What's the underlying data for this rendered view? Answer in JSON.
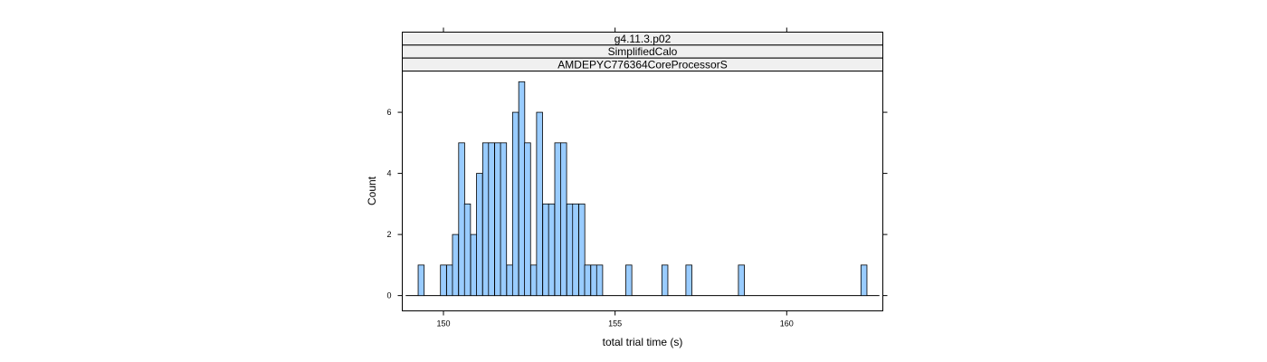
{
  "chart_data": {
    "type": "bar",
    "subtype": "histogram",
    "strips": [
      "g4.11.3.p02",
      "SimplifiedCalo",
      "AMDEPYC776364CoreProcessorS"
    ],
    "xlabel": "total trial time (s)",
    "ylabel": "Count",
    "xlim": [
      148.8,
      162.8
    ],
    "ylim": [
      -0.5,
      7.35
    ],
    "x_ticks": [
      150,
      155,
      160
    ],
    "y_ticks": [
      0,
      2,
      4,
      6
    ],
    "bin_width": 0.175,
    "bins": [
      {
        "x": 149.35,
        "count": 1
      },
      {
        "x": 150.0,
        "count": 1
      },
      {
        "x": 150.18,
        "count": 1
      },
      {
        "x": 150.35,
        "count": 2
      },
      {
        "x": 150.53,
        "count": 5
      },
      {
        "x": 150.7,
        "count": 3
      },
      {
        "x": 150.88,
        "count": 2
      },
      {
        "x": 151.05,
        "count": 4
      },
      {
        "x": 151.23,
        "count": 5
      },
      {
        "x": 151.4,
        "count": 5
      },
      {
        "x": 151.58,
        "count": 5
      },
      {
        "x": 151.75,
        "count": 5
      },
      {
        "x": 151.93,
        "count": 1
      },
      {
        "x": 152.1,
        "count": 6
      },
      {
        "x": 152.28,
        "count": 7
      },
      {
        "x": 152.45,
        "count": 5
      },
      {
        "x": 152.63,
        "count": 1
      },
      {
        "x": 152.8,
        "count": 6
      },
      {
        "x": 152.98,
        "count": 3
      },
      {
        "x": 153.15,
        "count": 3
      },
      {
        "x": 153.33,
        "count": 5
      },
      {
        "x": 153.5,
        "count": 5
      },
      {
        "x": 153.68,
        "count": 3
      },
      {
        "x": 153.85,
        "count": 3
      },
      {
        "x": 154.03,
        "count": 3
      },
      {
        "x": 154.2,
        "count": 1
      },
      {
        "x": 154.38,
        "count": 1
      },
      {
        "x": 154.55,
        "count": 1
      },
      {
        "x": 155.4,
        "count": 1
      },
      {
        "x": 156.45,
        "count": 1
      },
      {
        "x": 157.15,
        "count": 1
      },
      {
        "x": 158.68,
        "count": 1
      },
      {
        "x": 162.25,
        "count": 1
      }
    ],
    "baseline_range": [
      148.9,
      162.7
    ],
    "bar_color": "#99ccff",
    "bar_edge_color": "#000000",
    "strip_color": "#f0f0f0",
    "grid": false,
    "legend": "none"
  }
}
